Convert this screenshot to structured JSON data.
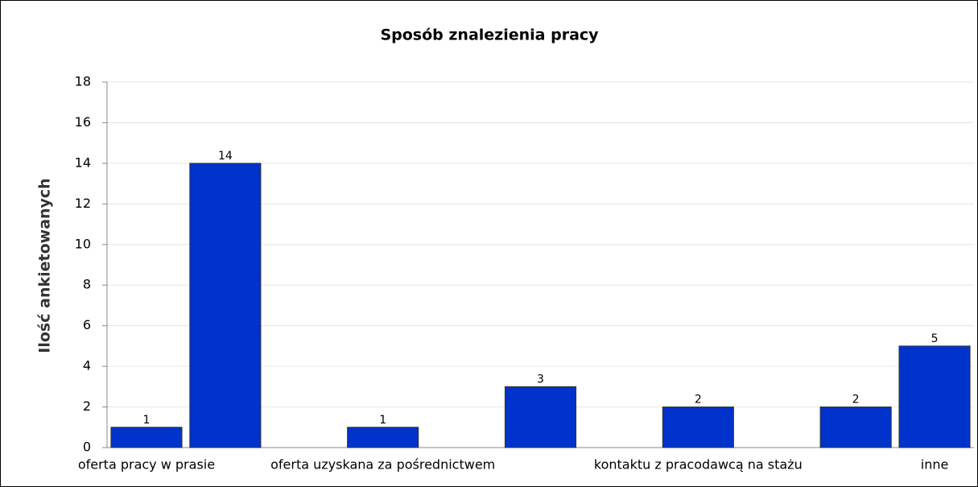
{
  "chart_data": {
    "type": "bar",
    "title": "Sposób znalezienia pracy",
    "y_label": "Ilość ankietowanych",
    "categories": [
      "oferta pracy w prasie",
      null,
      null,
      "oferta uzyskana za pośrednictwem",
      null,
      null,
      null,
      "kontaktu z pracodawcą na stażu",
      null,
      null,
      "inne"
    ],
    "values": [
      1,
      14,
      null,
      1,
      null,
      3,
      null,
      2,
      null,
      2,
      5
    ],
    "color": "#0033cc",
    "ylim": [
      0,
      18
    ],
    "yticks": [
      0,
      2,
      4,
      6,
      8,
      10,
      12,
      14,
      16,
      18
    ],
    "grid": true
  }
}
